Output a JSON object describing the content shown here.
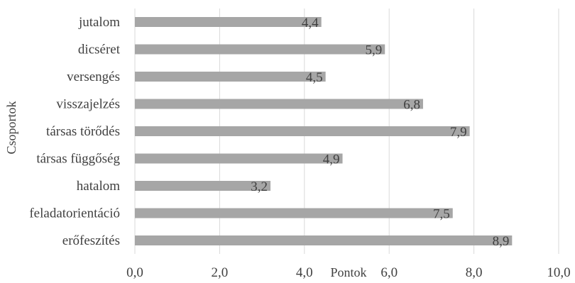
{
  "chart_data": {
    "type": "bar",
    "orientation": "horizontal",
    "categories": [
      "jutalom",
      "dicséret",
      "versengés",
      "visszajelzés",
      "társas törődés",
      "társas függőség",
      "hatalom",
      "feladatorientáció",
      "erőfeszítés"
    ],
    "values": [
      4.4,
      5.9,
      4.5,
      6.8,
      7.9,
      4.9,
      3.2,
      7.5,
      8.9
    ],
    "value_labels": [
      "4,4",
      "5,9",
      "4,5",
      "6,8",
      "7,9",
      "4,9",
      "3,2",
      "7,5",
      "8,9"
    ],
    "xlabel": "Pontok",
    "ylabel": "Csoportok",
    "xlim": [
      0,
      10
    ],
    "xticks": [
      0,
      2,
      4,
      6,
      8,
      10
    ],
    "xtick_labels": [
      "0,0",
      "2,0",
      "4,0",
      "6,0",
      "8,0",
      "10,0"
    ],
    "grid": "vertical",
    "legend": "none",
    "bar_color": "#a6a6a6",
    "text_color": "#404040",
    "grid_color": "#d9d9d9"
  }
}
